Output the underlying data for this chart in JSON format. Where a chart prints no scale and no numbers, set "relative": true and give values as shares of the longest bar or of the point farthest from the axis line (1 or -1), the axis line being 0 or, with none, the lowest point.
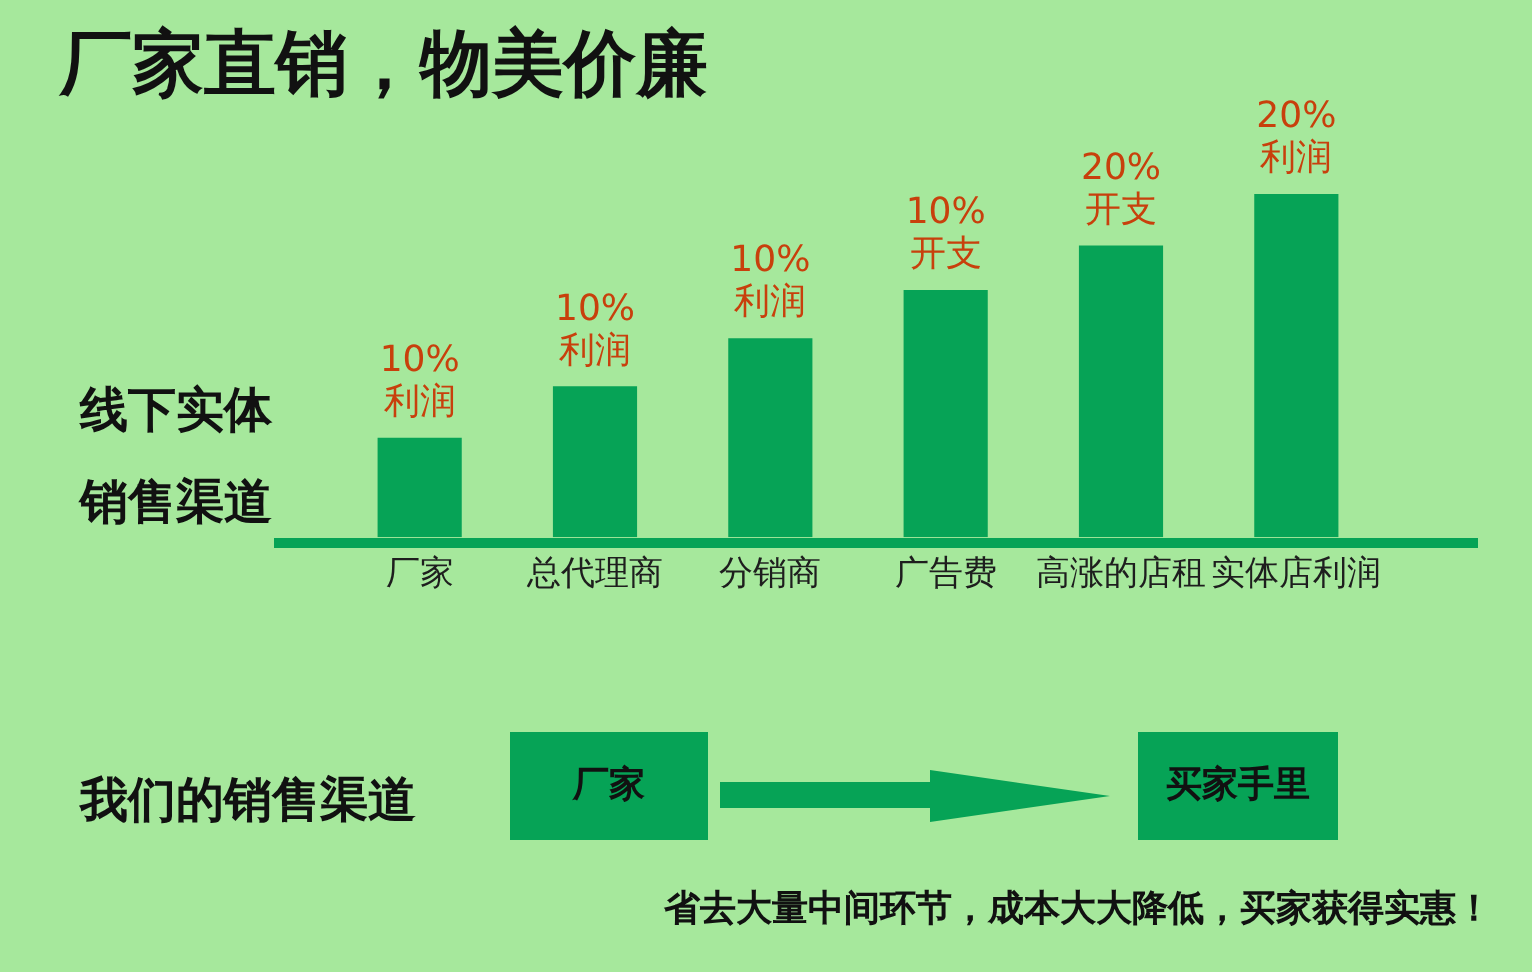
{
  "chart_data": {
    "type": "bar",
    "title": "厂家直销，物美价廉",
    "ylabel": "线下实体销售渠道",
    "categories": [
      "厂家",
      "总代理商",
      "分销商",
      "广告费",
      "高涨的店租",
      "实体店利润"
    ],
    "values": [
      0.29,
      0.44,
      0.58,
      0.72,
      0.85,
      1
    ],
    "color": "#06a356",
    "relative": true,
    "annotations": [
      {
        "text": "10%\n利润",
        "x": "厂家",
        "y": 0.29
      },
      {
        "text": "10%\n利润",
        "x": "总代理商",
        "y": 0.44
      },
      {
        "text": "10%\n利润",
        "x": "分销商",
        "y": 0.58
      },
      {
        "text": "10%\n开支",
        "x": "广告费",
        "y": 0.72
      },
      {
        "text": "20%\n开支",
        "x": "高涨的店租",
        "y": 0.85
      },
      {
        "text": "20%\n利润",
        "x": "实体店利润",
        "y": 1
      },
      "我们的销售渠道",
      "厂家",
      "买家手里",
      "省去大量中间环节，成本大大降低，买家获得实惠！"
    ],
    "grid": false,
    "legend": false
  }
}
